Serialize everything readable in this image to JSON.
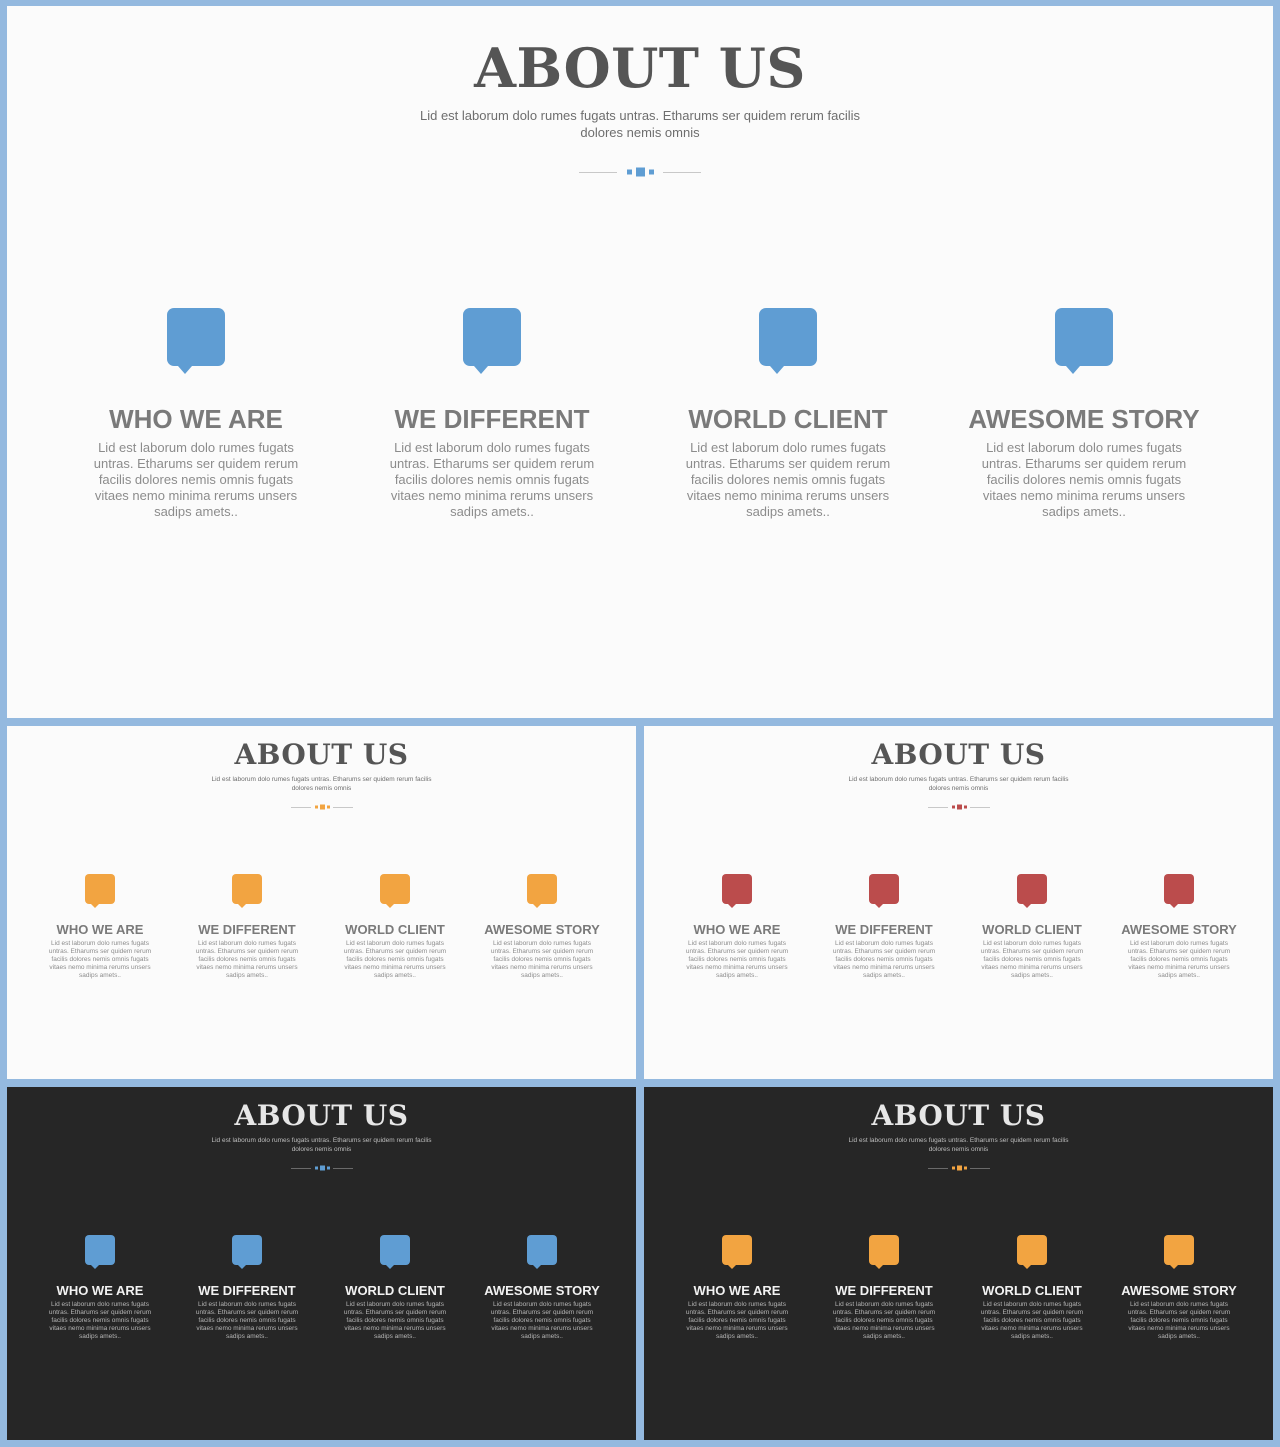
{
  "theme_colors": {
    "blue": "#5f9dd3",
    "orange": "#f2a441",
    "red": "#bb4c4c",
    "light_background": "#fbfbfb",
    "dark_background": "#262626",
    "frame": "#94b9df"
  },
  "icons": [
    "speech-bubble-icon"
  ],
  "slides": [
    {
      "variant": "light",
      "accent": "#5f9dd3",
      "title": "ABOUT US",
      "subtitle": "Lid est laborum dolo rumes fugats untras. Etharums ser quidem rerum facilis dolores nemis omnis",
      "features": [
        {
          "title": "WHO WE ARE",
          "text": "Lid est laborum dolo rumes fugats untras. Etharums ser quidem rerum facilis dolores nemis omnis fugats vitaes nemo minima rerums unsers sadips amets.."
        },
        {
          "title": "WE DIFFERENT",
          "text": "Lid est laborum dolo rumes fugats untras. Etharums ser quidem rerum facilis dolores nemis omnis fugats vitaes nemo minima rerums unsers sadips amets.."
        },
        {
          "title": "WORLD CLIENT",
          "text": "Lid est laborum dolo rumes fugats untras. Etharums ser quidem rerum facilis dolores nemis omnis fugats vitaes nemo minima rerums unsers sadips amets.."
        },
        {
          "title": "AWESOME STORY",
          "text": "Lid est laborum dolo rumes fugats untras. Etharums ser quidem rerum facilis dolores nemis omnis fugats vitaes nemo minima rerums unsers sadips amets.."
        }
      ]
    },
    {
      "variant": "light",
      "accent": "#f2a441",
      "title": "ABOUT US",
      "subtitle": "Lid est laborum dolo rumes fugats untras. Etharums ser quidem rerum facilis dolores nemis omnis",
      "features": [
        {
          "title": "WHO WE ARE",
          "text": "Lid est laborum dolo rumes fugats untras. Etharums ser quidem rerum facilis dolores nemis omnis fugats vitaes nemo minima rerums unsers sadips amets.."
        },
        {
          "title": "WE DIFFERENT",
          "text": "Lid est laborum dolo rumes fugats untras. Etharums ser quidem rerum facilis dolores nemis omnis fugats vitaes nemo minima rerums unsers sadips amets.."
        },
        {
          "title": "WORLD CLIENT",
          "text": "Lid est laborum dolo rumes fugats untras. Etharums ser quidem rerum facilis dolores nemis omnis fugats vitaes nemo minima rerums unsers sadips amets.."
        },
        {
          "title": "AWESOME STORY",
          "text": "Lid est laborum dolo rumes fugats untras. Etharums ser quidem rerum facilis dolores nemis omnis fugats vitaes nemo minima rerums unsers sadips amets.."
        }
      ]
    },
    {
      "variant": "light",
      "accent": "#bb4c4c",
      "title": "ABOUT US",
      "subtitle": "Lid est laborum dolo rumes fugats untras. Etharums ser quidem rerum facilis dolores nemis omnis",
      "features": [
        {
          "title": "WHO WE ARE",
          "text": "Lid est laborum dolo rumes fugats untras. Etharums ser quidem rerum facilis dolores nemis omnis fugats vitaes nemo minima rerums unsers sadips amets.."
        },
        {
          "title": "WE DIFFERENT",
          "text": "Lid est laborum dolo rumes fugats untras. Etharums ser quidem rerum facilis dolores nemis omnis fugats vitaes nemo minima rerums unsers sadips amets.."
        },
        {
          "title": "WORLD CLIENT",
          "text": "Lid est laborum dolo rumes fugats untras. Etharums ser quidem rerum facilis dolores nemis omnis fugats vitaes nemo minima rerums unsers sadips amets.."
        },
        {
          "title": "AWESOME STORY",
          "text": "Lid est laborum dolo rumes fugats untras. Etharums ser quidem rerum facilis dolores nemis omnis fugats vitaes nemo minima rerums unsers sadips amets.."
        }
      ]
    },
    {
      "variant": "dark",
      "accent": "#5f9dd3",
      "title": "ABOUT US",
      "subtitle": "Lid est laborum dolo rumes fugats untras. Etharums ser quidem rerum facilis dolores nemis omnis",
      "features": [
        {
          "title": "WHO WE ARE",
          "text": "Lid est laborum dolo rumes fugats untras. Etharums ser quidem rerum facilis dolores nemis omnis fugats vitaes nemo minima rerums unsers sadips amets.."
        },
        {
          "title": "WE DIFFERENT",
          "text": "Lid est laborum dolo rumes fugats untras. Etharums ser quidem rerum facilis dolores nemis omnis fugats vitaes nemo minima rerums unsers sadips amets.."
        },
        {
          "title": "WORLD CLIENT",
          "text": "Lid est laborum dolo rumes fugats untras. Etharums ser quidem rerum facilis dolores nemis omnis fugats vitaes nemo minima rerums unsers sadips amets.."
        },
        {
          "title": "AWESOME STORY",
          "text": "Lid est laborum dolo rumes fugats untras. Etharums ser quidem rerum facilis dolores nemis omnis fugats vitaes nemo minima rerums unsers sadips amets.."
        }
      ]
    },
    {
      "variant": "dark",
      "accent": "#f2a441",
      "title": "ABOUT US",
      "subtitle": "Lid est laborum dolo rumes fugats untras. Etharums ser quidem rerum facilis dolores nemis omnis",
      "features": [
        {
          "title": "WHO WE ARE",
          "text": "Lid est laborum dolo rumes fugats untras. Etharums ser quidem rerum facilis dolores nemis omnis fugats vitaes nemo minima rerums unsers sadips amets.."
        },
        {
          "title": "WE DIFFERENT",
          "text": "Lid est laborum dolo rumes fugats untras. Etharums ser quidem rerum facilis dolores nemis omnis fugats vitaes nemo minima rerums unsers sadips amets.."
        },
        {
          "title": "WORLD CLIENT",
          "text": "Lid est laborum dolo rumes fugats untras. Etharums ser quidem rerum facilis dolores nemis omnis fugats vitaes nemo minima rerums unsers sadips amets.."
        },
        {
          "title": "AWESOME STORY",
          "text": "Lid est laborum dolo rumes fugats untras. Etharums ser quidem rerum facilis dolores nemis omnis fugats vitaes nemo minima rerums unsers sadips amets.."
        }
      ]
    }
  ]
}
